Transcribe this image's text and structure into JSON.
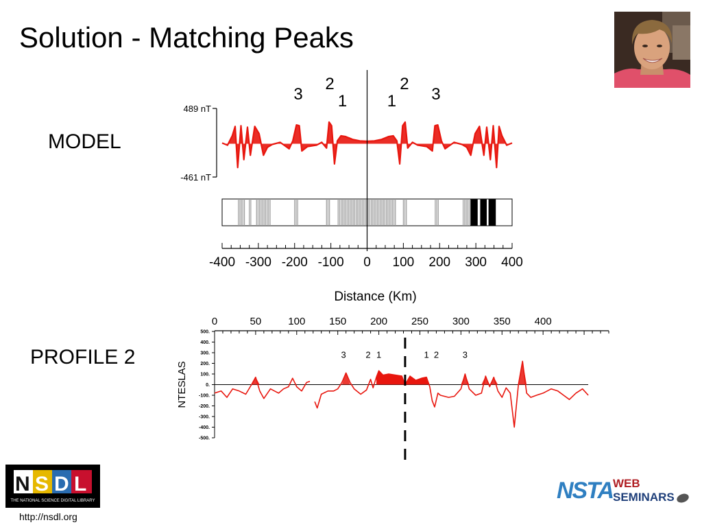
{
  "slide": {
    "title": "Solution - Matching Peaks",
    "model_label": "MODEL",
    "profile_label": "PROFILE 2",
    "url": "http://nsdl.org"
  },
  "logos": {
    "nsdl_text": "NSDL",
    "nsdl_tagline": "THE NATIONAL SCIENCE DIGITAL LIBRARY",
    "nsta_text": "NSTA",
    "nsta_web": "WEB",
    "nsta_seminars": "SEMINARS"
  },
  "colors": {
    "signal": "#e8160e",
    "stripe_gray": "#a6a6a6",
    "nsdl_red": "#c8102e",
    "nsta_blue": "#2f7fc1",
    "nsta_red": "#b01e23"
  },
  "chart_data": [
    {
      "type": "line",
      "name": "model",
      "title": "",
      "xlabel": "Distance (Km)",
      "ylabel": "",
      "x_ticks": [
        "-400",
        "-300",
        "-200",
        "-100",
        "0",
        "100",
        "200",
        "300",
        "400"
      ],
      "xlim": [
        -400,
        400
      ],
      "y_ticks": [
        "489 nT",
        "-461 nT"
      ],
      "ylim": [
        -461,
        489
      ],
      "peak_labels": [
        {
          "text": "3",
          "x": -190
        },
        {
          "text": "2",
          "x": -103
        },
        {
          "text": "1",
          "x": -68
        },
        {
          "text": "1",
          "x": 68
        },
        {
          "text": "2",
          "x": 103
        },
        {
          "text": "3",
          "x": 190
        }
      ],
      "stripes": [
        {
          "from": -355,
          "to": -335,
          "color": "gray"
        },
        {
          "from": -325,
          "to": -318,
          "color": "gray"
        },
        {
          "from": -305,
          "to": -265,
          "color": "gray"
        },
        {
          "from": -200,
          "to": -188,
          "color": "gray"
        },
        {
          "from": -112,
          "to": -100,
          "color": "gray"
        },
        {
          "from": -80,
          "to": 80,
          "color": "gray"
        },
        {
          "from": 100,
          "to": 112,
          "color": "gray"
        },
        {
          "from": 188,
          "to": 200,
          "color": "gray"
        },
        {
          "from": 265,
          "to": 285,
          "color": "gray"
        },
        {
          "from": 285,
          "to": 305,
          "color": "black"
        },
        {
          "from": 312,
          "to": 330,
          "color": "black"
        },
        {
          "from": 335,
          "to": 355,
          "color": "black"
        }
      ],
      "series": [
        {
          "values": [
            [
              -400,
              10
            ],
            [
              -385,
              -20
            ],
            [
              -372,
              110
            ],
            [
              -364,
              240
            ],
            [
              -357,
              -330
            ],
            [
              -348,
              250
            ],
            [
              -340,
              -220
            ],
            [
              -330,
              230
            ],
            [
              -322,
              -160
            ],
            [
              -310,
              240
            ],
            [
              -298,
              140
            ],
            [
              -286,
              -160
            ],
            [
              -275,
              -50
            ],
            [
              -262,
              -10
            ],
            [
              -240,
              20
            ],
            [
              -215,
              -70
            ],
            [
              -205,
              40
            ],
            [
              -195,
              260
            ],
            [
              -187,
              250
            ],
            [
              -180,
              -100
            ],
            [
              -165,
              -40
            ],
            [
              -140,
              -20
            ],
            [
              -125,
              20
            ],
            [
              -112,
              -60
            ],
            [
              -105,
              300
            ],
            [
              -98,
              250
            ],
            [
              -90,
              -280
            ],
            [
              -82,
              40
            ],
            [
              -72,
              110
            ],
            [
              -60,
              100
            ],
            [
              -40,
              60
            ],
            [
              -20,
              40
            ],
            [
              0,
              35
            ],
            [
              20,
              40
            ],
            [
              40,
              60
            ],
            [
              60,
              100
            ],
            [
              72,
              110
            ],
            [
              82,
              40
            ],
            [
              90,
              -280
            ],
            [
              98,
              250
            ],
            [
              105,
              300
            ],
            [
              112,
              -60
            ],
            [
              125,
              20
            ],
            [
              140,
              -20
            ],
            [
              165,
              -40
            ],
            [
              180,
              -100
            ],
            [
              187,
              250
            ],
            [
              195,
              260
            ],
            [
              205,
              40
            ],
            [
              215,
              -70
            ],
            [
              240,
              20
            ],
            [
              262,
              -10
            ],
            [
              275,
              -50
            ],
            [
              286,
              -160
            ],
            [
              298,
              140
            ],
            [
              310,
              240
            ],
            [
              322,
              -160
            ],
            [
              330,
              230
            ],
            [
              340,
              -220
            ],
            [
              348,
              250
            ],
            [
              357,
              -330
            ],
            [
              364,
              240
            ],
            [
              372,
              110
            ],
            [
              385,
              -20
            ],
            [
              400,
              10
            ]
          ]
        }
      ]
    },
    {
      "type": "line",
      "name": "profile-2",
      "title": "",
      "xlabel": "",
      "ylabel": "NTESLAS",
      "x_ticks": [
        "0",
        "50",
        "100",
        "150",
        "200",
        "250",
        "300",
        "350",
        "400"
      ],
      "xlim": [
        0,
        480
      ],
      "y_ticks": [
        "500.",
        "400.",
        "300.",
        "200.",
        "100.",
        "0.",
        "-100.",
        "-200.",
        "-300.",
        "-400.",
        "-500."
      ],
      "ylim": [
        -500,
        500
      ],
      "divider_x": 232,
      "peak_labels": [
        {
          "text": "3",
          "x": 157
        },
        {
          "text": "2",
          "x": 187
        },
        {
          "text": "1",
          "x": 200
        },
        {
          "text": "1",
          "x": 258
        },
        {
          "text": "2",
          "x": 270
        },
        {
          "text": "3",
          "x": 305
        }
      ],
      "series": [
        {
          "values": [
            [
              0,
              -80
            ],
            [
              8,
              -60
            ],
            [
              15,
              -120
            ],
            [
              22,
              -40
            ],
            [
              30,
              -60
            ],
            [
              38,
              -90
            ],
            [
              45,
              0
            ],
            [
              50,
              70
            ],
            [
              55,
              -60
            ],
            [
              60,
              -130
            ],
            [
              68,
              -40
            ],
            [
              78,
              -80
            ],
            [
              84,
              -40
            ],
            [
              90,
              -20
            ],
            [
              95,
              60
            ],
            [
              100,
              -20
            ],
            [
              106,
              -60
            ],
            [
              112,
              20
            ],
            [
              116,
              30
            ],
            [
              118,
              0
            ],
            [
              122,
              -160
            ],
            [
              125,
              -220
            ],
            [
              130,
              -90
            ],
            [
              138,
              -60
            ],
            [
              145,
              -60
            ],
            [
              150,
              -40
            ],
            [
              155,
              20
            ],
            [
              160,
              110
            ],
            [
              165,
              20
            ],
            [
              170,
              -40
            ],
            [
              178,
              -90
            ],
            [
              185,
              -50
            ],
            [
              190,
              50
            ],
            [
              193,
              -30
            ],
            [
              197,
              70
            ],
            [
              200,
              130
            ],
            [
              205,
              90
            ],
            [
              212,
              100
            ],
            [
              220,
              90
            ],
            [
              228,
              80
            ],
            [
              232,
              0
            ],
            [
              238,
              80
            ],
            [
              245,
              40
            ],
            [
              252,
              60
            ],
            [
              258,
              70
            ],
            [
              262,
              -20
            ],
            [
              265,
              -150
            ],
            [
              268,
              -210
            ],
            [
              272,
              -80
            ],
            [
              275,
              -100
            ],
            [
              285,
              -120
            ],
            [
              292,
              -110
            ],
            [
              300,
              -40
            ],
            [
              305,
              100
            ],
            [
              310,
              -40
            ],
            [
              318,
              -100
            ],
            [
              325,
              -80
            ],
            [
              330,
              80
            ],
            [
              335,
              -20
            ],
            [
              340,
              70
            ],
            [
              345,
              -60
            ],
            [
              350,
              -120
            ],
            [
              355,
              -30
            ],
            [
              360,
              -80
            ],
            [
              365,
              -400
            ],
            [
              370,
              0
            ],
            [
              375,
              220
            ],
            [
              380,
              -80
            ],
            [
              385,
              -120
            ],
            [
              392,
              -100
            ],
            [
              400,
              -80
            ],
            [
              410,
              -40
            ],
            [
              418,
              -60
            ],
            [
              425,
              -100
            ],
            [
              432,
              -140
            ],
            [
              440,
              -80
            ],
            [
              448,
              -40
            ],
            [
              455,
              -100
            ]
          ]
        }
      ]
    }
  ]
}
